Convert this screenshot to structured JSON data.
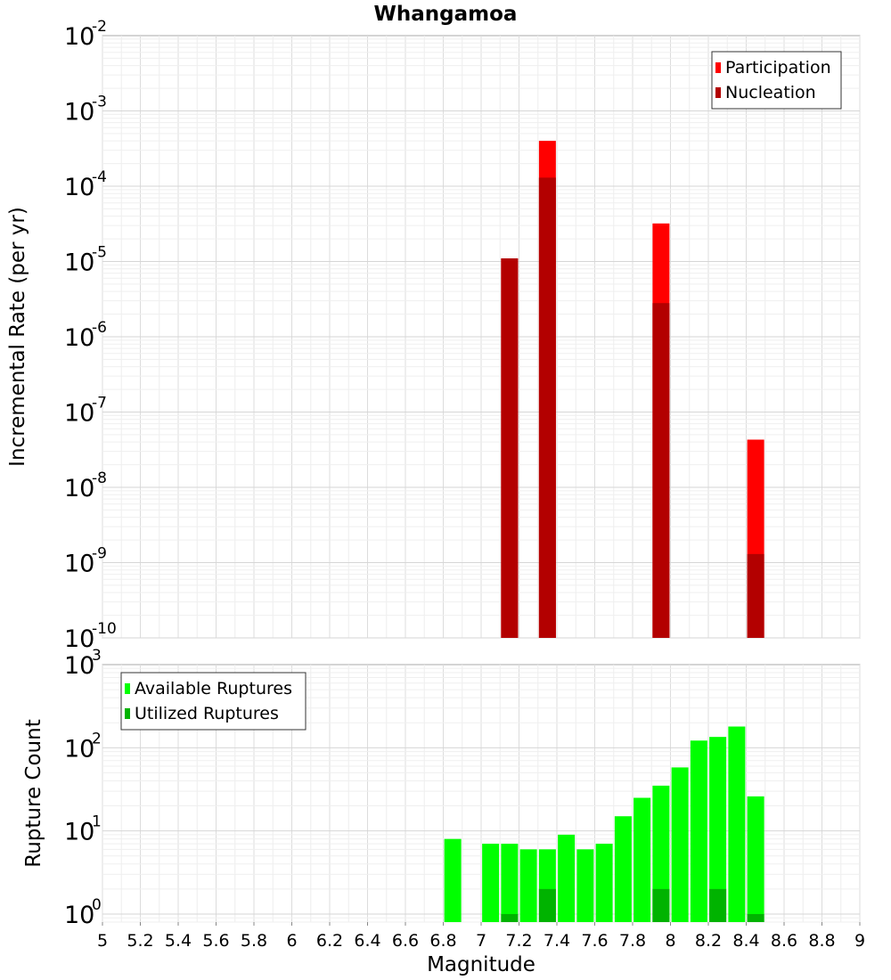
{
  "chart_data": [
    {
      "type": "bar",
      "title": "Whangamoa",
      "ylabel": "Incremental Rate (per yr)",
      "y_scale": "log",
      "ylim": [
        1e-10,
        0.01
      ],
      "xlim": [
        5,
        9
      ],
      "y_tick_labels": [
        {
          "base": "10",
          "exp": "-10"
        },
        {
          "base": "10",
          "exp": "-9"
        },
        {
          "base": "10",
          "exp": "-8"
        },
        {
          "base": "10",
          "exp": "-7"
        },
        {
          "base": "10",
          "exp": "-6"
        },
        {
          "base": "10",
          "exp": "-5"
        },
        {
          "base": "10",
          "exp": "-4"
        },
        {
          "base": "10",
          "exp": "-3"
        },
        {
          "base": "10",
          "exp": "-2"
        }
      ],
      "legend_position": "top-right",
      "grid": true,
      "series": [
        {
          "name": "Participation",
          "color": "#ff0000",
          "points": [
            {
              "x": 7.15,
              "y": 1.1e-05
            },
            {
              "x": 7.35,
              "y": 0.0004
            },
            {
              "x": 7.95,
              "y": 3.2e-05
            },
            {
              "x": 8.45,
              "y": 4.3e-08
            }
          ]
        },
        {
          "name": "Nucleation",
          "color": "#b30000",
          "points": [
            {
              "x": 7.15,
              "y": 1.1e-05
            },
            {
              "x": 7.35,
              "y": 0.00013
            },
            {
              "x": 7.95,
              "y": 2.8e-06
            },
            {
              "x": 8.45,
              "y": 1.3e-09
            }
          ]
        }
      ]
    },
    {
      "type": "bar",
      "title": "",
      "xlabel": "Magnitude",
      "ylabel": "Rupture Count",
      "y_scale": "log",
      "ylim": [
        0.8,
        1000
      ],
      "xlim": [
        5,
        9
      ],
      "y_tick_labels": [
        {
          "base": "10",
          "exp": "0"
        },
        {
          "base": "10",
          "exp": "1"
        },
        {
          "base": "10",
          "exp": "2"
        },
        {
          "base": "10",
          "exp": "3"
        }
      ],
      "x_tick_labels": [
        "5",
        "5.2",
        "5.4",
        "5.6",
        "5.8",
        "6",
        "6.2",
        "6.4",
        "6.6",
        "6.8",
        "7",
        "7.2",
        "7.4",
        "7.6",
        "7.8",
        "8",
        "8.2",
        "8.4",
        "8.6",
        "8.8",
        "9"
      ],
      "legend_position": "top-left",
      "grid": true,
      "series": [
        {
          "name": "Available Ruptures",
          "color": "#00ff00",
          "points": [
            {
              "x": 6.85,
              "y": 8
            },
            {
              "x": 7.05,
              "y": 7
            },
            {
              "x": 7.15,
              "y": 7
            },
            {
              "x": 7.25,
              "y": 6
            },
            {
              "x": 7.35,
              "y": 6
            },
            {
              "x": 7.45,
              "y": 9
            },
            {
              "x": 7.55,
              "y": 6
            },
            {
              "x": 7.65,
              "y": 7
            },
            {
              "x": 7.75,
              "y": 15
            },
            {
              "x": 7.85,
              "y": 25
            },
            {
              "x": 7.95,
              "y": 35
            },
            {
              "x": 8.05,
              "y": 58
            },
            {
              "x": 8.15,
              "y": 122
            },
            {
              "x": 8.25,
              "y": 135
            },
            {
              "x": 8.35,
              "y": 180
            },
            {
              "x": 8.45,
              "y": 26
            }
          ]
        },
        {
          "name": "Utilized Ruptures",
          "color": "#00b300",
          "points": [
            {
              "x": 7.15,
              "y": 1
            },
            {
              "x": 7.35,
              "y": 2
            },
            {
              "x": 7.95,
              "y": 2
            },
            {
              "x": 8.25,
              "y": 2
            },
            {
              "x": 8.45,
              "y": 1
            }
          ]
        }
      ]
    }
  ]
}
